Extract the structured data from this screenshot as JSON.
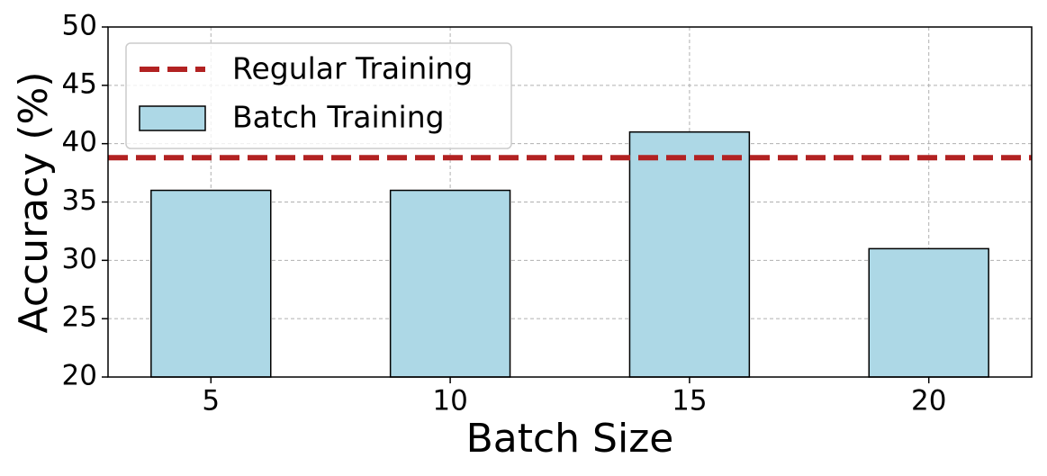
{
  "chart_data": {
    "type": "bar",
    "xlabel": "Batch Size",
    "ylabel": "Accuracy (%)",
    "categories": [
      "5",
      "10",
      "15",
      "20"
    ],
    "series": [
      {
        "name": "Batch Training",
        "color": "#add8e6",
        "values": [
          36,
          36,
          41,
          31
        ]
      }
    ],
    "reference_line": {
      "name": "Regular Training",
      "value": 38.8,
      "color": "#b22222"
    },
    "ylim": [
      20,
      50
    ],
    "yticks": [
      20,
      25,
      30,
      35,
      40,
      45,
      50
    ],
    "grid": true,
    "legend": "upper left"
  }
}
